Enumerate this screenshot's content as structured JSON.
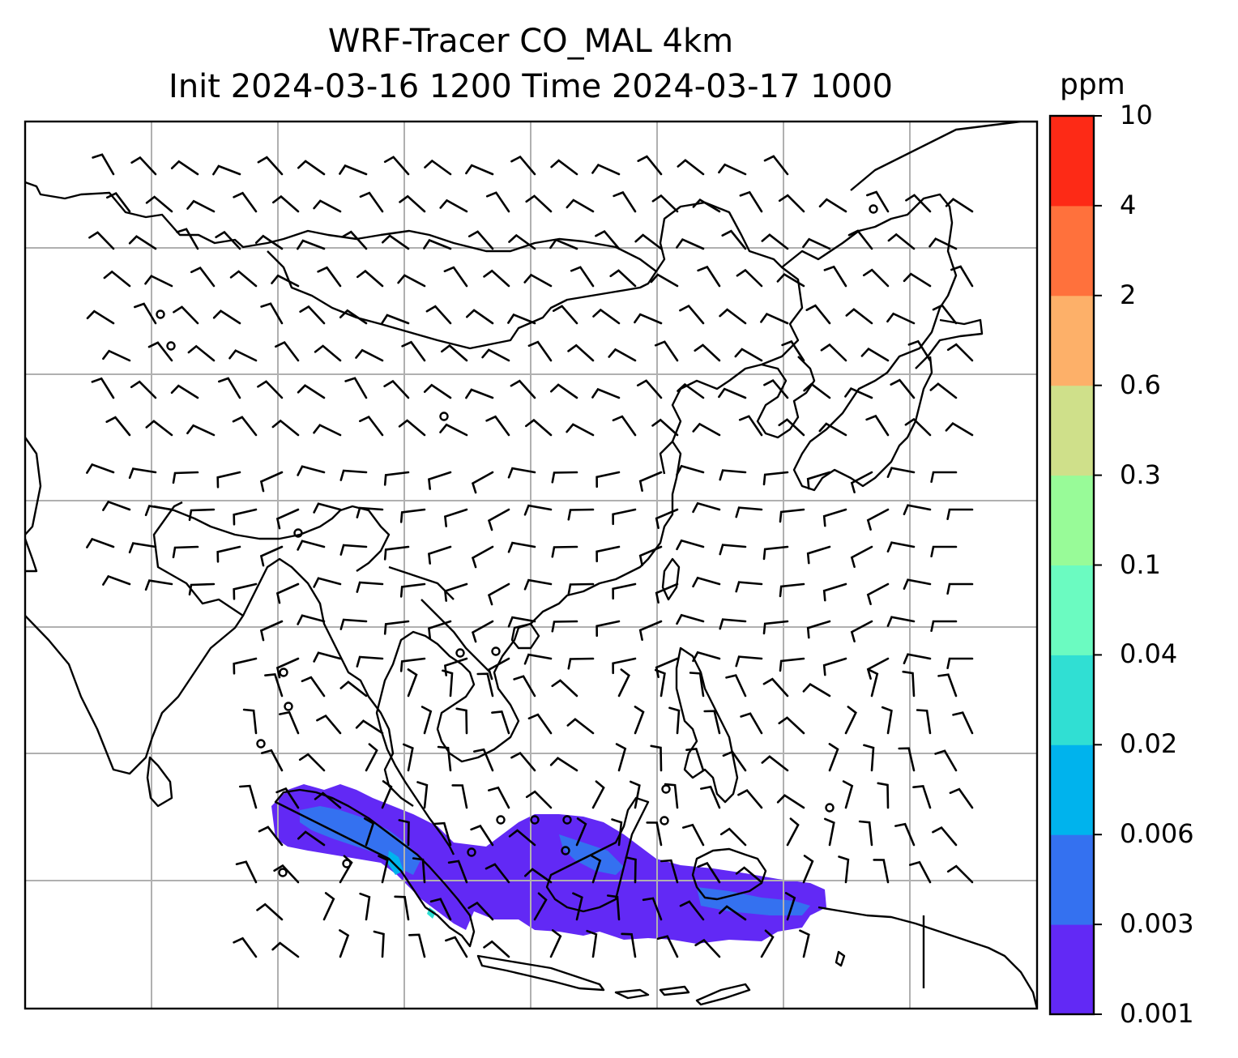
{
  "title": {
    "line1": "WRF-Tracer CO_MAL 4km",
    "line2": "Init 2024-03-16 1200 Time 2024-03-17 1000"
  },
  "colorbar": {
    "unit": "ppm",
    "levels": [
      "0.001",
      "0.003",
      "0.006",
      "0.02",
      "0.04",
      "0.1",
      "0.3",
      "0.6",
      "2",
      "4",
      "10"
    ],
    "colors": [
      "#6229f5",
      "#3471f0",
      "#00b3ed",
      "#30dfd3",
      "#6bfbc1",
      "#98fb98",
      "#cfe08a",
      "#fdb069",
      "#ff713c",
      "#fd2a16"
    ]
  },
  "map": {
    "gridlines": true,
    "coastline_color": "#000000",
    "grid_color": "#b0b0b0",
    "wind_barb_color": "#000000"
  }
}
